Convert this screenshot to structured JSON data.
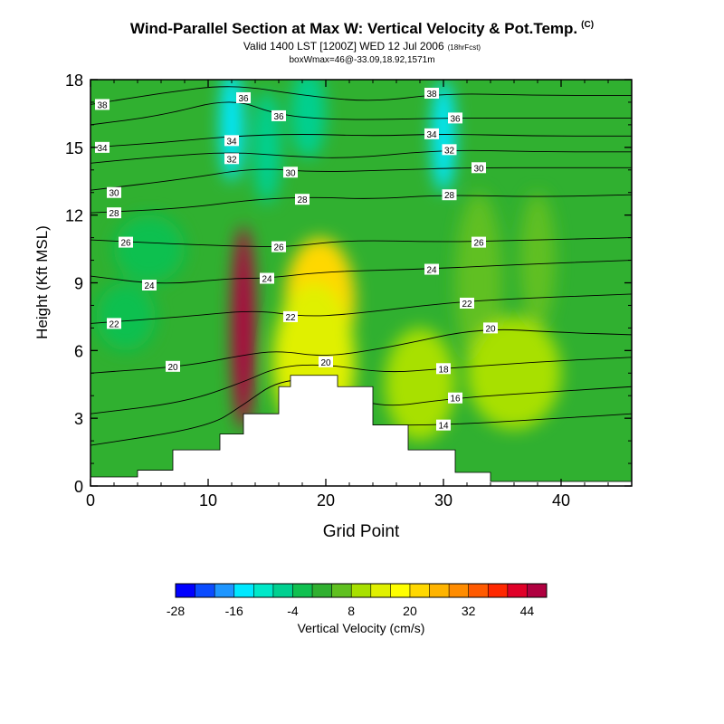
{
  "titles": {
    "main": "Wind-Parallel Section at Max W: Vertical Velocity & Pot.Temp.",
    "copyright": "(C)",
    "valid": "Valid 1400 LST [1200Z] WED 12 Jul 2006",
    "forecast_tag": "(18hrFcst)",
    "box": "boxWmax=46@-33.09,18.92,1571m"
  },
  "chart_data": {
    "type": "heatmap",
    "xlabel": "Grid Point",
    "ylabel": "Height (Kft MSL)",
    "xlim": [
      0,
      46
    ],
    "ylim": [
      0,
      18
    ],
    "x_ticks": [
      0,
      10,
      20,
      30,
      40
    ],
    "y_ticks": [
      0,
      3,
      6,
      9,
      12,
      15,
      18
    ],
    "colorbar": {
      "label": "Vertical Velocity (cm/s)",
      "min": -28,
      "step": 4,
      "tick_labels": [
        "-28",
        "-16",
        "-4",
        "8",
        "20",
        "32",
        "44"
      ],
      "colors": [
        "#0000ff",
        "#0a4cff",
        "#1e96ff",
        "#00e8ff",
        "#00e8c8",
        "#00d090",
        "#10c050",
        "#30b030",
        "#60c020",
        "#a8e000",
        "#e0f000",
        "#ffff00",
        "#ffd800",
        "#ffb400",
        "#ff8c00",
        "#ff5a00",
        "#ff2800",
        "#e00028",
        "#b00040"
      ]
    },
    "terrain": [
      {
        "x": 0,
        "h": 0.4
      },
      {
        "x": 4,
        "h": 0.7
      },
      {
        "x": 7,
        "h": 1.6
      },
      {
        "x": 11,
        "h": 2.3
      },
      {
        "x": 13,
        "h": 3.2
      },
      {
        "x": 16,
        "h": 4.4
      },
      {
        "x": 17,
        "h": 4.9
      },
      {
        "x": 21,
        "h": 4.4
      },
      {
        "x": 24,
        "h": 2.7
      },
      {
        "x": 27,
        "h": 1.6
      },
      {
        "x": 31,
        "h": 0.6
      },
      {
        "x": 34,
        "h": 0.2
      },
      {
        "x": 36,
        "h": 0.2
      },
      {
        "x": 46,
        "h": 0.2
      }
    ],
    "vertical_velocity_features": [
      {
        "x": 13,
        "y": 7,
        "rx": 1.0,
        "ry": 4.5,
        "value": 44
      },
      {
        "x": 19.5,
        "y": 8.2,
        "rx": 3.0,
        "ry": 2.8,
        "value": 22
      },
      {
        "x": 19,
        "y": 5.5,
        "rx": 3.5,
        "ry": 3.5,
        "value": 14
      },
      {
        "x": 12,
        "y": 16,
        "rx": 1.0,
        "ry": 2.5,
        "value": -16
      },
      {
        "x": 15,
        "y": 15,
        "rx": 1.2,
        "ry": 2.5,
        "value": -8
      },
      {
        "x": 18.5,
        "y": 16.5,
        "rx": 1.5,
        "ry": 2.0,
        "value": -8
      },
      {
        "x": 30,
        "y": 15.5,
        "rx": 1.0,
        "ry": 2.5,
        "value": -16
      },
      {
        "x": 3,
        "y": 7.5,
        "rx": 2.5,
        "ry": 1.5,
        "value": -4
      },
      {
        "x": 5,
        "y": 10.5,
        "rx": 3.0,
        "ry": 1.5,
        "value": -4
      },
      {
        "x": 33,
        "y": 9,
        "rx": 2.0,
        "ry": 4.0,
        "value": 4
      },
      {
        "x": 38,
        "y": 10,
        "rx": 1.5,
        "ry": 3.0,
        "value": 4
      },
      {
        "x": 28,
        "y": 4.5,
        "rx": 3.0,
        "ry": 2.5,
        "value": 8
      },
      {
        "x": 36,
        "y": 5,
        "rx": 4.0,
        "ry": 2.5,
        "value": 8
      }
    ],
    "theta_contours": [
      {
        "label": "14",
        "points": [
          [
            24,
            2.7
          ],
          [
            30,
            2.7
          ],
          [
            40,
            3.0
          ],
          [
            46,
            3.2
          ]
        ]
      },
      {
        "label": "16",
        "points": [
          [
            0,
            1.8
          ],
          [
            10,
            2.6
          ],
          [
            13,
            3.6
          ],
          [
            16,
            4.7
          ],
          [
            20,
            4.7
          ],
          [
            24,
            3.4
          ],
          [
            31,
            3.9
          ],
          [
            40,
            4.2
          ],
          [
            46,
            4.4
          ]
        ]
      },
      {
        "label": "18",
        "points": [
          [
            0,
            3.2
          ],
          [
            8,
            3.7
          ],
          [
            13,
            4.6
          ],
          [
            16,
            5.3
          ],
          [
            20,
            5.4
          ],
          [
            25,
            5.0
          ],
          [
            30,
            5.2
          ],
          [
            38,
            5.5
          ],
          [
            46,
            5.7
          ]
        ]
      },
      {
        "label": "20",
        "points": [
          [
            0,
            5.0
          ],
          [
            8,
            5.3
          ],
          [
            13,
            5.8
          ],
          [
            16,
            6.0
          ],
          [
            20,
            5.7
          ],
          [
            26,
            6.2
          ],
          [
            33,
            7.0
          ],
          [
            40,
            6.8
          ],
          [
            46,
            6.7
          ]
        ]
      },
      {
        "label": "22",
        "points": [
          [
            0,
            7.2
          ],
          [
            8,
            7.5
          ],
          [
            14,
            7.8
          ],
          [
            18,
            7.5
          ],
          [
            22,
            7.6
          ],
          [
            30,
            8.1
          ],
          [
            36,
            8.3
          ],
          [
            46,
            8.5
          ]
        ]
      },
      {
        "label": "24",
        "points": [
          [
            0,
            9.3
          ],
          [
            6,
            8.9
          ],
          [
            12,
            9.2
          ],
          [
            15,
            9.2
          ],
          [
            20,
            9.5
          ],
          [
            28,
            9.6
          ],
          [
            36,
            9.8
          ],
          [
            46,
            10.0
          ]
        ]
      },
      {
        "label": "26",
        "points": [
          [
            0,
            10.9
          ],
          [
            8,
            10.7
          ],
          [
            14,
            10.6
          ],
          [
            17,
            10.6
          ],
          [
            22,
            10.9
          ],
          [
            30,
            10.8
          ],
          [
            38,
            10.9
          ],
          [
            46,
            11.0
          ]
        ]
      },
      {
        "label": "28",
        "points": [
          [
            0,
            12.1
          ],
          [
            8,
            12.3
          ],
          [
            14,
            12.7
          ],
          [
            19,
            12.8
          ],
          [
            24,
            12.7
          ],
          [
            30,
            12.9
          ],
          [
            38,
            12.8
          ],
          [
            46,
            12.9
          ]
        ]
      },
      {
        "label": "30",
        "points": [
          [
            0,
            13.1
          ],
          [
            8,
            13.6
          ],
          [
            14,
            14.1
          ],
          [
            19,
            13.9
          ],
          [
            26,
            14.0
          ],
          [
            32,
            14.1
          ],
          [
            40,
            14.1
          ],
          [
            46,
            14.1
          ]
        ]
      },
      {
        "label": "32",
        "points": [
          [
            0,
            14.3
          ],
          [
            6,
            14.6
          ],
          [
            12,
            14.8
          ],
          [
            17,
            14.6
          ],
          [
            22,
            14.5
          ],
          [
            30,
            14.9
          ],
          [
            38,
            14.8
          ],
          [
            46,
            14.8
          ]
        ]
      },
      {
        "label": "34",
        "points": [
          [
            0,
            15.0
          ],
          [
            6,
            15.2
          ],
          [
            12,
            15.5
          ],
          [
            18,
            15.6
          ],
          [
            24,
            15.5
          ],
          [
            30,
            15.6
          ],
          [
            38,
            15.5
          ],
          [
            46,
            15.5
          ]
        ]
      },
      {
        "label": "36",
        "points": [
          [
            0,
            16.0
          ],
          [
            6,
            16.4
          ],
          [
            12,
            17.2
          ],
          [
            16,
            16.4
          ],
          [
            22,
            16.2
          ],
          [
            30,
            16.3
          ],
          [
            38,
            16.3
          ],
          [
            46,
            16.3
          ]
        ]
      },
      {
        "label": "38",
        "points": [
          [
            0,
            16.9
          ],
          [
            6,
            17.4
          ],
          [
            12,
            17.8
          ],
          [
            18,
            17.3
          ],
          [
            24,
            17.0
          ],
          [
            30,
            17.4
          ],
          [
            38,
            17.3
          ],
          [
            46,
            17.3
          ]
        ]
      }
    ],
    "contour_labels": [
      {
        "text": "38",
        "x": 1,
        "y": 16.9
      },
      {
        "text": "36",
        "x": 13,
        "y": 17.2
      },
      {
        "text": "36",
        "x": 16,
        "y": 16.4
      },
      {
        "text": "38",
        "x": 29,
        "y": 17.4
      },
      {
        "text": "36",
        "x": 31,
        "y": 16.3
      },
      {
        "text": "34",
        "x": 12,
        "y": 15.3
      },
      {
        "text": "34",
        "x": 1,
        "y": 15.0
      },
      {
        "text": "34",
        "x": 29,
        "y": 15.6
      },
      {
        "text": "32",
        "x": 12,
        "y": 14.5
      },
      {
        "text": "32",
        "x": 30.5,
        "y": 14.9
      },
      {
        "text": "30",
        "x": 2,
        "y": 13.0
      },
      {
        "text": "30",
        "x": 17,
        "y": 13.9
      },
      {
        "text": "30",
        "x": 33,
        "y": 14.1
      },
      {
        "text": "28",
        "x": 2,
        "y": 12.1
      },
      {
        "text": "28",
        "x": 18,
        "y": 12.7
      },
      {
        "text": "28",
        "x": 30.5,
        "y": 12.9
      },
      {
        "text": "26",
        "x": 3,
        "y": 10.8
      },
      {
        "text": "26",
        "x": 16,
        "y": 10.6
      },
      {
        "text": "26",
        "x": 33,
        "y": 10.8
      },
      {
        "text": "24",
        "x": 5,
        "y": 8.9
      },
      {
        "text": "24",
        "x": 15,
        "y": 9.2
      },
      {
        "text": "24",
        "x": 29,
        "y": 9.6
      },
      {
        "text": "22",
        "x": 2,
        "y": 7.2
      },
      {
        "text": "22",
        "x": 17,
        "y": 7.5
      },
      {
        "text": "22",
        "x": 32,
        "y": 8.1
      },
      {
        "text": "20",
        "x": 7,
        "y": 5.3
      },
      {
        "text": "20",
        "x": 20,
        "y": 5.5
      },
      {
        "text": "20",
        "x": 34,
        "y": 7.0
      },
      {
        "text": "18",
        "x": 30,
        "y": 5.2
      },
      {
        "text": "16",
        "x": 31,
        "y": 3.9
      },
      {
        "text": "14",
        "x": 30,
        "y": 2.7
      }
    ]
  }
}
